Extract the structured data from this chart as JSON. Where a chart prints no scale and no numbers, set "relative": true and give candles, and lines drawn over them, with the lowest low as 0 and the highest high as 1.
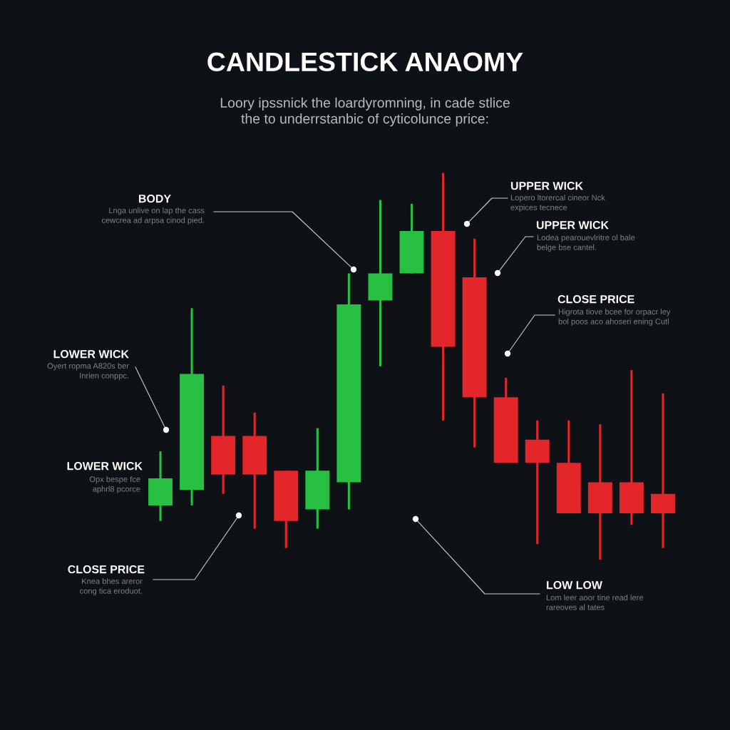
{
  "chart_data": {
    "type": "candlestick",
    "relative": true,
    "title": "CANDLESTICK ANAOMY",
    "subtitle": "Loory ipssnick the loardyromning, in cade stlice\nthe to underrstanbic of cyticolunce price:",
    "categories": [
      null,
      null,
      null,
      null,
      null,
      null,
      null,
      null,
      null,
      null,
      null,
      null,
      null,
      null,
      null,
      null,
      null
    ],
    "ohlc": [
      [
        0.14,
        0.28,
        0.1,
        0.21
      ],
      [
        0.18,
        0.65,
        0.14,
        0.48
      ],
      [
        0.32,
        0.45,
        0.17,
        0.22
      ],
      [
        0.32,
        0.38,
        0.08,
        0.22
      ],
      [
        0.23,
        0.23,
        0.03,
        0.1
      ],
      [
        0.13,
        0.34,
        0.08,
        0.23
      ],
      [
        0.2,
        0.74,
        0.13,
        0.66
      ],
      [
        0.67,
        0.93,
        0.5,
        0.74
      ],
      [
        0.74,
        0.92,
        0.74,
        0.85
      ],
      [
        0.85,
        1.0,
        0.36,
        0.55
      ],
      [
        0.73,
        0.83,
        0.29,
        0.42
      ],
      [
        0.42,
        0.47,
        0.25,
        0.25
      ],
      [
        0.31,
        0.36,
        0.04,
        0.25
      ],
      [
        0.25,
        0.36,
        0.12,
        0.12
      ],
      [
        0.2,
        0.35,
        0.0,
        0.12
      ],
      [
        0.2,
        0.49,
        0.09,
        0.12
      ],
      [
        0.17,
        0.43,
        0.03,
        0.12
      ]
    ],
    "colors": [
      "#28c043",
      "#28c043",
      "#e2262a",
      "#e2262a",
      "#e2262a",
      "#28c043",
      "#28c043",
      "#28c043",
      "#28c043",
      "#e2262a",
      "#e2262a",
      "#e2262a",
      "#e2262a",
      "#e2262a",
      "#e2262a",
      "#e2262a",
      "#e2262a"
    ],
    "annotations": [
      "BODY",
      "Lnga unlive on lap the cass\ncewcrea ad arpsa cinod pied.",
      "LOWER WICK",
      "Oyert ropma A820s ber\nInrien conppc.",
      "LOWER WICK",
      "Opx bespe fce\naphrl8 pcorce",
      "CLOSE PRICE",
      "Knea bhes areror\ncong tica eroduot.",
      "UPPER WICK",
      "Lopero ltorercal cineor Nck\nexpices tecnece",
      "UPPER WICK",
      "Lodea pearouevlritre ol bale\nbelge bse cantel.",
      "CLOSE PRICE",
      "Higrota tiove bcee for orpacr ley\nbol poos aco ahoseri ening Cutl",
      "LOW LOW",
      "Lom leer aoor tine read lere\nrareoves al tates"
    ]
  }
}
